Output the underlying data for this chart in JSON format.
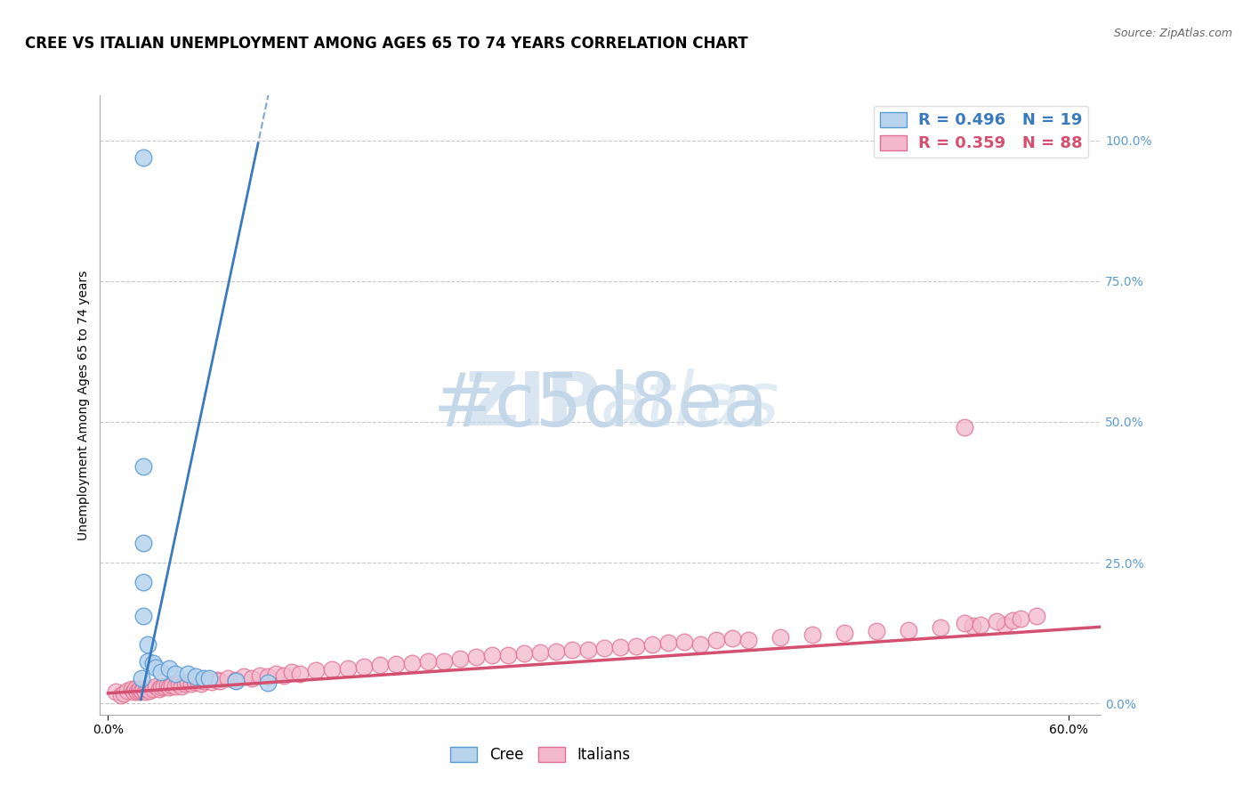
{
  "title": "CREE VS ITALIAN UNEMPLOYMENT AMONG AGES 65 TO 74 YEARS CORRELATION CHART",
  "source_text": "Source: ZipAtlas.com",
  "ylabel": "Unemployment Among Ages 65 to 74 years",
  "ytick_labels": [
    "0.0%",
    "25.0%",
    "50.0%",
    "75.0%",
    "100.0%"
  ],
  "ytick_values": [
    0.0,
    0.25,
    0.5,
    0.75,
    1.0
  ],
  "xlim": [
    -0.005,
    0.62
  ],
  "ylim": [
    -0.02,
    1.08
  ],
  "legend_cree_r": "R = 0.496",
  "legend_cree_n": "N = 19",
  "legend_ital_r": "R = 0.359",
  "legend_ital_n": "N = 88",
  "cree_fill_color": "#b8d4ed",
  "cree_edge_color": "#5b9bd5",
  "italian_fill_color": "#f4b8cc",
  "italian_edge_color": "#e07090",
  "cree_line_color": "#3a7abf",
  "italian_line_color": "#d45070",
  "watermark_color": "#c5d8ea",
  "grid_color": "#c8c8c8",
  "ytick_color": "#5b9bd5",
  "background_color": "#ffffff",
  "title_fontsize": 12,
  "source_fontsize": 9,
  "axis_label_fontsize": 10,
  "tick_fontsize": 10,
  "legend_fontsize": 12,
  "watermark_fontsize": 60,
  "cree_x": [
    0.022,
    0.022,
    0.022,
    0.022,
    0.022,
    0.025,
    0.025,
    0.028,
    0.03,
    0.033,
    0.038,
    0.042,
    0.05,
    0.055,
    0.06,
    0.063,
    0.08,
    0.1,
    0.021
  ],
  "cree_y": [
    0.97,
    0.42,
    0.285,
    0.215,
    0.155,
    0.105,
    0.075,
    0.072,
    0.063,
    0.055,
    0.062,
    0.052,
    0.052,
    0.048,
    0.045,
    0.044,
    0.04,
    0.037,
    0.045
  ],
  "cree_slope": 13.5,
  "cree_intercept": -0.27,
  "italian_slope": 0.19,
  "italian_intercept": 0.018,
  "ital_x": [
    0.005,
    0.008,
    0.01,
    0.012,
    0.015,
    0.016,
    0.017,
    0.018,
    0.019,
    0.02,
    0.021,
    0.022,
    0.023,
    0.025,
    0.026,
    0.028,
    0.03,
    0.032,
    0.033,
    0.035,
    0.037,
    0.038,
    0.04,
    0.042,
    0.044,
    0.046,
    0.048,
    0.05,
    0.052,
    0.054,
    0.056,
    0.058,
    0.06,
    0.065,
    0.068,
    0.07,
    0.075,
    0.08,
    0.085,
    0.09,
    0.095,
    0.1,
    0.105,
    0.11,
    0.115,
    0.12,
    0.13,
    0.14,
    0.15,
    0.16,
    0.17,
    0.18,
    0.19,
    0.2,
    0.21,
    0.22,
    0.23,
    0.24,
    0.25,
    0.26,
    0.27,
    0.28,
    0.29,
    0.3,
    0.31,
    0.32,
    0.33,
    0.34,
    0.35,
    0.36,
    0.37,
    0.38,
    0.39,
    0.4,
    0.42,
    0.44,
    0.46,
    0.48,
    0.5,
    0.52,
    0.54,
    0.56,
    0.535,
    0.545,
    0.555,
    0.565,
    0.57,
    0.58
  ],
  "ital_y": [
    0.02,
    0.015,
    0.018,
    0.022,
    0.025,
    0.02,
    0.025,
    0.02,
    0.022,
    0.025,
    0.022,
    0.025,
    0.02,
    0.025,
    0.022,
    0.025,
    0.03,
    0.025,
    0.028,
    0.03,
    0.032,
    0.028,
    0.032,
    0.03,
    0.035,
    0.03,
    0.035,
    0.038,
    0.035,
    0.038,
    0.04,
    0.035,
    0.04,
    0.038,
    0.042,
    0.04,
    0.045,
    0.042,
    0.048,
    0.045,
    0.05,
    0.048,
    0.052,
    0.05,
    0.055,
    0.052,
    0.058,
    0.06,
    0.062,
    0.065,
    0.068,
    0.07,
    0.072,
    0.075,
    0.075,
    0.08,
    0.082,
    0.085,
    0.085,
    0.088,
    0.09,
    0.092,
    0.095,
    0.095,
    0.098,
    0.1,
    0.102,
    0.105,
    0.108,
    0.11,
    0.105,
    0.112,
    0.115,
    0.112,
    0.118,
    0.122,
    0.125,
    0.128,
    0.13,
    0.135,
    0.138,
    0.14,
    0.142,
    0.14,
    0.145,
    0.148,
    0.15,
    0.155
  ],
  "ital_extra_x": [
    0.535
  ],
  "ital_extra_y": [
    0.49
  ]
}
